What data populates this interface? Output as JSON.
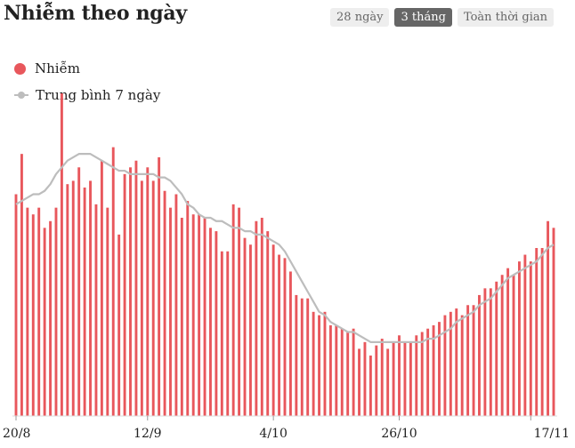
{
  "header": {
    "title": "Nhiễm theo ngày",
    "tabs": [
      {
        "label": "28 ngày",
        "active": false
      },
      {
        "label": "3 tháng",
        "active": true
      },
      {
        "label": "Toàn thời gian",
        "active": false
      }
    ]
  },
  "legend": {
    "cases_label": "Nhiễm",
    "avg_label": "Trung bình 7 ngày"
  },
  "colors": {
    "bar": "#e8575c",
    "avg_line": "#bdbdbd",
    "active_tab": "#666666",
    "tab": "#eeeeee"
  },
  "chart_data": {
    "type": "bar",
    "x_ticks": [
      "20/8",
      "12/9",
      "4/10",
      "26/10",
      "17/11"
    ],
    "x_tick_index": [
      0,
      23,
      45,
      67,
      90
    ],
    "ylim": [
      0,
      1
    ],
    "series": [
      {
        "name": "Nhiễm",
        "type": "bar",
        "values": [
          0.66,
          0.78,
          0.62,
          0.6,
          0.62,
          0.56,
          0.58,
          0.62,
          0.96,
          0.69,
          0.7,
          0.74,
          0.68,
          0.7,
          0.63,
          0.76,
          0.62,
          0.8,
          0.54,
          0.72,
          0.74,
          0.76,
          0.7,
          0.74,
          0.7,
          0.77,
          0.67,
          0.62,
          0.66,
          0.59,
          0.64,
          0.6,
          0.6,
          0.59,
          0.56,
          0.55,
          0.49,
          0.49,
          0.63,
          0.62,
          0.53,
          0.51,
          0.58,
          0.59,
          0.55,
          0.51,
          0.48,
          0.47,
          0.43,
          0.36,
          0.35,
          0.35,
          0.31,
          0.3,
          0.31,
          0.27,
          0.27,
          0.26,
          0.25,
          0.26,
          0.2,
          0.22,
          0.18,
          0.21,
          0.23,
          0.2,
          0.22,
          0.24,
          0.22,
          0.22,
          0.24,
          0.25,
          0.26,
          0.27,
          0.28,
          0.3,
          0.31,
          0.32,
          0.3,
          0.33,
          0.33,
          0.36,
          0.38,
          0.38,
          0.4,
          0.42,
          0.44,
          0.42,
          0.46,
          0.48,
          0.46,
          0.5,
          0.5,
          0.58,
          0.56
        ]
      },
      {
        "name": "Trung bình 7 ngày",
        "type": "line",
        "values": [
          0.63,
          0.64,
          0.65,
          0.66,
          0.66,
          0.67,
          0.69,
          0.72,
          0.74,
          0.76,
          0.77,
          0.78,
          0.78,
          0.78,
          0.77,
          0.76,
          0.75,
          0.74,
          0.73,
          0.73,
          0.72,
          0.72,
          0.72,
          0.72,
          0.72,
          0.71,
          0.71,
          0.7,
          0.68,
          0.66,
          0.63,
          0.62,
          0.6,
          0.59,
          0.59,
          0.58,
          0.58,
          0.57,
          0.56,
          0.56,
          0.55,
          0.55,
          0.54,
          0.54,
          0.53,
          0.52,
          0.51,
          0.49,
          0.46,
          0.43,
          0.4,
          0.37,
          0.34,
          0.31,
          0.3,
          0.28,
          0.27,
          0.26,
          0.25,
          0.25,
          0.24,
          0.23,
          0.22,
          0.22,
          0.22,
          0.22,
          0.22,
          0.22,
          0.22,
          0.22,
          0.22,
          0.22,
          0.23,
          0.23,
          0.24,
          0.25,
          0.26,
          0.28,
          0.29,
          0.3,
          0.31,
          0.33,
          0.34,
          0.35,
          0.37,
          0.39,
          0.41,
          0.42,
          0.43,
          0.44,
          0.45,
          0.46,
          0.48,
          0.5,
          0.51
        ]
      }
    ]
  }
}
